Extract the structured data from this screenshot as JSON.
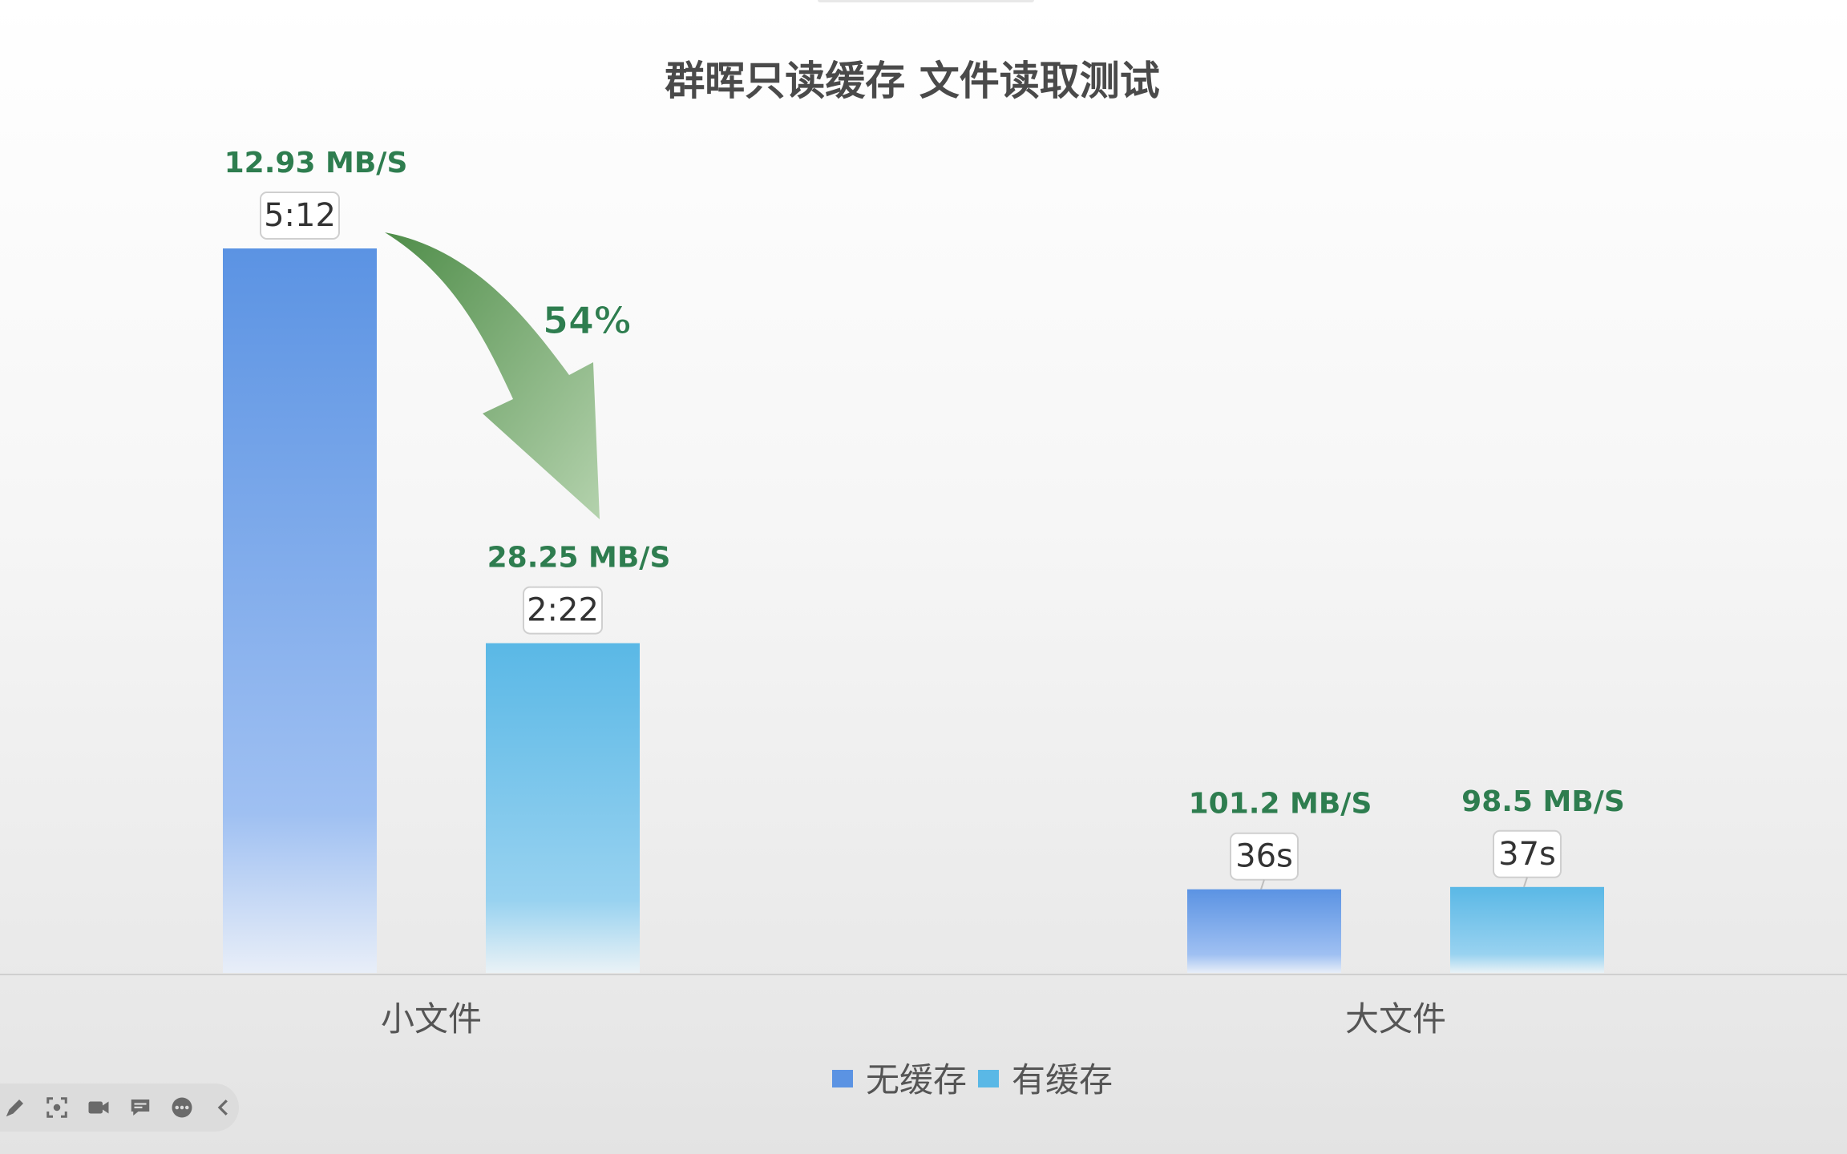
{
  "chart_data": {
    "type": "bar",
    "title": "群晖只读缓存 文件读取测试",
    "categories": [
      "小文件",
      "大文件"
    ],
    "series": [
      {
        "name": "无缓存",
        "color": "#5b93e3",
        "values": [
          312,
          36
        ],
        "time_labels": [
          "5:12",
          "36s"
        ],
        "speed_labels": [
          "12.93 MB/S",
          "101.2 MB/S"
        ]
      },
      {
        "name": "有缓存",
        "color": "#5ab8e6",
        "values": [
          142,
          37
        ],
        "time_labels": [
          "2:22",
          "37s"
        ],
        "speed_labels": [
          "28.25 MB/S",
          "98.5 MB/S"
        ]
      }
    ],
    "ylim": [
      0,
      340
    ],
    "grid": false,
    "legend_position": "bottom-center",
    "annotation": {
      "text": "54%",
      "color": "#5a9a55"
    },
    "label_color": "#2e7d4f"
  },
  "toolbar": {
    "icons": [
      "pen-icon",
      "screenshot-icon",
      "video-icon",
      "comment-icon",
      "more-icon",
      "collapse-icon"
    ]
  }
}
